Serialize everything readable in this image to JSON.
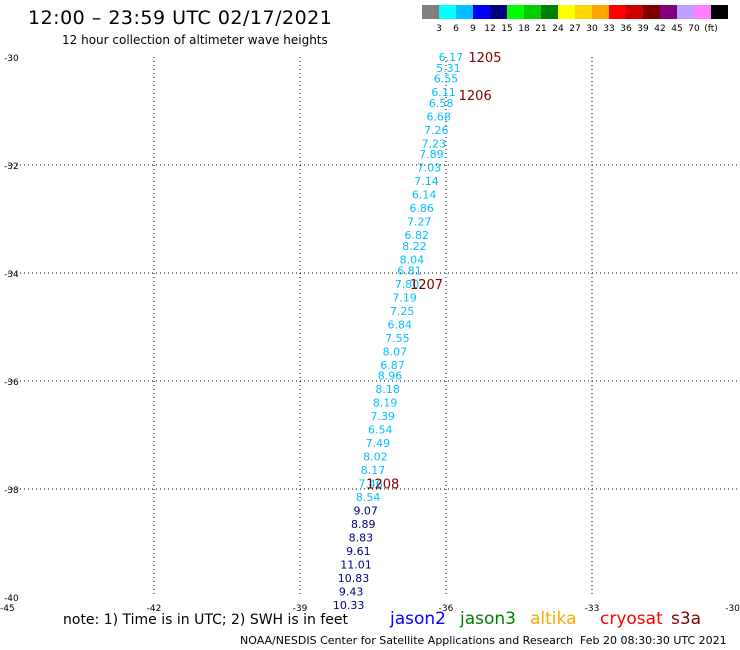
{
  "header": {
    "title": "12:00 – 23:59 UTC 02/17/2021",
    "subtitle": "12 hour collection of altimeter wave heights"
  },
  "scale": {
    "colors": [
      "#808080",
      "#00ffff",
      "#00bfff",
      "#0000ff",
      "#00007f",
      "#00ff00",
      "#00cc00",
      "#008000",
      "#ffff00",
      "#ffd700",
      "#ffa500",
      "#ff0000",
      "#cc0000",
      "#800000",
      "#800080",
      "#c0a0ff",
      "#ff80ff",
      "#000000"
    ],
    "labels": [
      "3",
      "6",
      "9",
      "12",
      "15",
      "18",
      "21",
      "24",
      "27",
      "30",
      "33",
      "36",
      "39",
      "42",
      "45",
      "70",
      "(ft)"
    ]
  },
  "chart_data": {
    "type": "scatter",
    "title": "12:00 – 23:59 UTC 02/17/2021",
    "subtitle": "12 hour collection of altimeter wave heights",
    "xlim": [
      -45,
      -30
    ],
    "ylim": [
      -40,
      -30
    ],
    "x_ticks": [
      -45,
      -42,
      -39,
      -36,
      -33,
      -30
    ],
    "y_ticks": [
      -30,
      -32,
      -34,
      -36,
      -38,
      -40
    ],
    "grid": true,
    "units": "ft",
    "series": [
      {
        "name": "jason2",
        "color": "#00bfff",
        "points": [
          {
            "x": -35.9,
            "y": -30.0,
            "v": "6.17"
          },
          {
            "x": -35.95,
            "y": -30.2,
            "v": "5.31"
          },
          {
            "x": -36.0,
            "y": -30.4,
            "v": "6.55"
          },
          {
            "x": -36.05,
            "y": -30.65,
            "v": "6.11"
          },
          {
            "x": -36.1,
            "y": -30.85,
            "v": "6.58"
          },
          {
            "x": -36.15,
            "y": -31.1,
            "v": "6.68"
          },
          {
            "x": -36.2,
            "y": -31.35,
            "v": "7.26"
          },
          {
            "x": -36.25,
            "y": -31.6,
            "v": "7.23"
          },
          {
            "x": -36.3,
            "y": -31.8,
            "v": "7.89"
          },
          {
            "x": -36.35,
            "y": -32.05,
            "v": "7.03"
          },
          {
            "x": -36.4,
            "y": -32.3,
            "v": "7.14"
          },
          {
            "x": -36.45,
            "y": -32.55,
            "v": "6.14"
          },
          {
            "x": -36.5,
            "y": -32.8,
            "v": "6.86"
          },
          {
            "x": -36.55,
            "y": -33.05,
            "v": "7.27"
          },
          {
            "x": -36.6,
            "y": -33.3,
            "v": "6.82"
          },
          {
            "x": -36.65,
            "y": -33.5,
            "v": "8.22"
          },
          {
            "x": -36.7,
            "y": -33.75,
            "v": "8.04"
          },
          {
            "x": -36.75,
            "y": -33.95,
            "v": "6.81"
          },
          {
            "x": -36.8,
            "y": -34.2,
            "v": "7.80"
          },
          {
            "x": -36.85,
            "y": -34.45,
            "v": "7.19"
          },
          {
            "x": -36.9,
            "y": -34.7,
            "v": "7.25"
          },
          {
            "x": -36.95,
            "y": -34.95,
            "v": "6.84"
          },
          {
            "x": -37.0,
            "y": -35.2,
            "v": "7.55"
          },
          {
            "x": -37.05,
            "y": -35.45,
            "v": "8.07"
          },
          {
            "x": -37.1,
            "y": -35.7,
            "v": "6.87"
          },
          {
            "x": -37.15,
            "y": -35.9,
            "v": "8.96"
          },
          {
            "x": -37.2,
            "y": -36.15,
            "v": "8.18"
          },
          {
            "x": -37.25,
            "y": -36.4,
            "v": "8.19"
          },
          {
            "x": -37.3,
            "y": -36.65,
            "v": "7.39"
          },
          {
            "x": -37.35,
            "y": -36.9,
            "v": "6.54"
          },
          {
            "x": -37.4,
            "y": -37.15,
            "v": "7.49"
          },
          {
            "x": -37.45,
            "y": -37.4,
            "v": "8.02"
          },
          {
            "x": -37.5,
            "y": -37.65,
            "v": "8.17"
          },
          {
            "x": -37.55,
            "y": -37.9,
            "v": "7.46"
          },
          {
            "x": -37.6,
            "y": -38.15,
            "v": "8.54"
          }
        ]
      },
      {
        "name": "jason2",
        "color": "#00007f",
        "points": [
          {
            "x": -37.65,
            "y": -38.4,
            "v": "9.07"
          },
          {
            "x": -37.7,
            "y": -38.65,
            "v": "8.89"
          },
          {
            "x": -37.75,
            "y": -38.9,
            "v": "8.83"
          },
          {
            "x": -37.8,
            "y": -39.15,
            "v": "9.61"
          },
          {
            "x": -37.85,
            "y": -39.4,
            "v": "11.01"
          },
          {
            "x": -37.9,
            "y": -39.65,
            "v": "10.83"
          },
          {
            "x": -37.95,
            "y": -39.9,
            "v": "9.43"
          },
          {
            "x": -38.0,
            "y": -40.15,
            "v": "10.33"
          }
        ]
      }
    ],
    "annotations": [
      {
        "text": "1205",
        "x": -35.2,
        "y": -30.0,
        "color": "#800000"
      },
      {
        "text": "1206",
        "x": -35.4,
        "y": -30.7,
        "color": "#800000"
      },
      {
        "text": "1207",
        "x": -36.4,
        "y": -34.2,
        "color": "#800000"
      },
      {
        "text": "1208",
        "x": -37.3,
        "y": -37.9,
        "color": "#800000"
      }
    ]
  },
  "footer": {
    "note": "note:  1) Time is in UTC;  2) SWH is in feet",
    "satellites": [
      {
        "label": "jason2",
        "color": "#0000ff"
      },
      {
        "label": "jason3",
        "color": "#008000"
      },
      {
        "label": "altika",
        "color": "#ffa500"
      },
      {
        "label": "cryosat",
        "color": "#ff0000"
      },
      {
        "label": "s3a",
        "color": "#800000"
      }
    ],
    "credit": "NOAA/NESDIS Center for Satellite Applications and Research",
    "timestamp": "Feb 20 08:30:30 UTC 2021"
  }
}
